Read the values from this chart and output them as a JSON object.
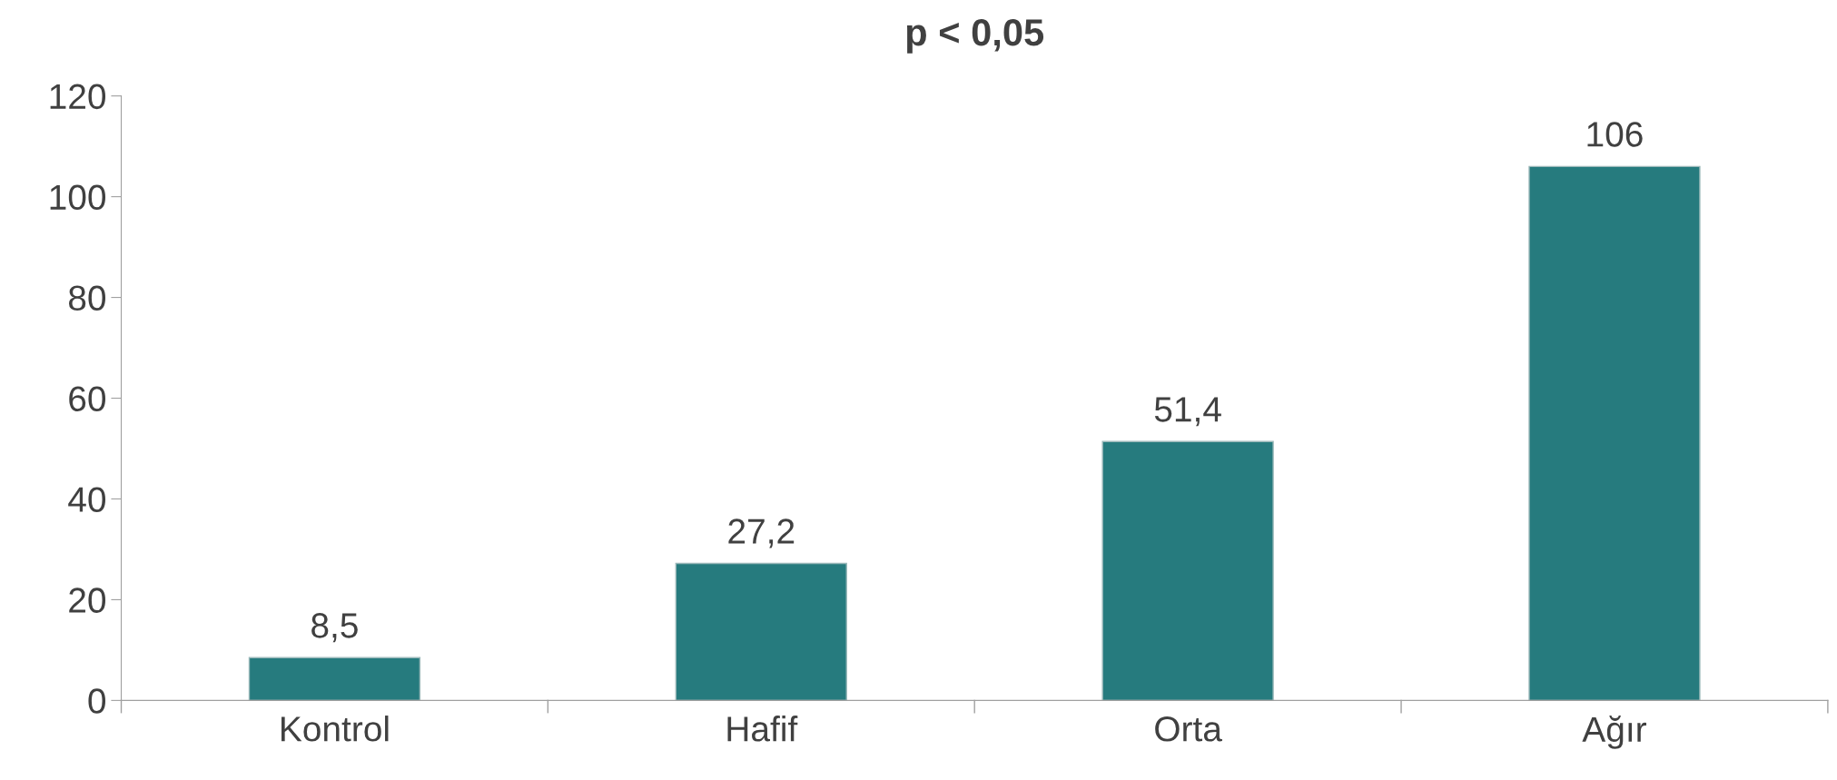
{
  "chart_data": {
    "type": "bar",
    "title": "p < 0,05",
    "categories": [
      "Kontrol",
      "Hafif",
      "Orta",
      "Ağır"
    ],
    "values": [
      8.5,
      27.2,
      51.4,
      106
    ],
    "value_labels": [
      "8,5",
      "27,2",
      "51,4",
      "106"
    ],
    "color": "#267b7e",
    "ylim": [
      0,
      120
    ],
    "yticks": [
      0,
      20,
      40,
      60,
      80,
      100,
      120
    ],
    "grid": false,
    "legend": false
  }
}
